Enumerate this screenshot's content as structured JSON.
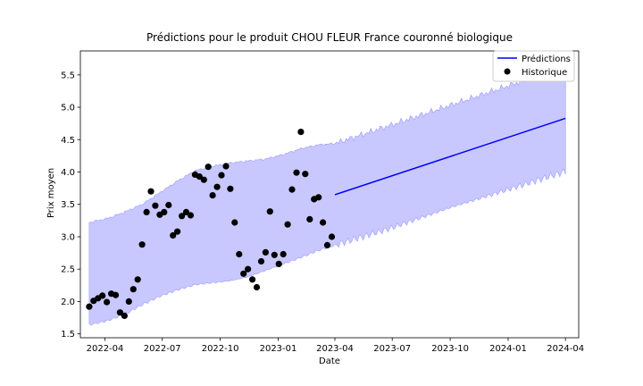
{
  "chart_data": {
    "type": "line",
    "title": "Prédictions pour le produit CHOU FLEUR France couronné biologique",
    "xlabel": "Date",
    "ylabel": "Prix moyen",
    "ylim": [
      1.44,
      5.87
    ],
    "xlim": [
      "2022-02-21",
      "2024-04-22"
    ],
    "grid": false,
    "legend_position": "top-right",
    "x_tick_labels": [
      "2022-04",
      "2022-07",
      "2022-10",
      "2023-01",
      "2023-04",
      "2023-07",
      "2023-10",
      "2024-01",
      "2024-04"
    ],
    "y_tick_labels": [
      "1.5",
      "2.0",
      "2.5",
      "3.0",
      "3.5",
      "4.0",
      "4.5",
      "5.0",
      "5.5"
    ],
    "colors": {
      "prediction_line": "#0000ff",
      "interval_fill": "#c8c8ff",
      "interval_edge": "#9a9aff",
      "historical_points": "#000000"
    },
    "series": [
      {
        "name": "Prédictions",
        "kind": "line",
        "x": [
          "2023-04-01",
          "2024-04-01"
        ],
        "y": [
          3.65,
          4.83
        ]
      },
      {
        "name": "Historique",
        "kind": "scatter",
        "x": [
          "2022-03-07",
          "2022-03-14",
          "2022-03-21",
          "2022-03-28",
          "2022-04-04",
          "2022-04-11",
          "2022-04-18",
          "2022-04-25",
          "2022-05-02",
          "2022-05-09",
          "2022-05-16",
          "2022-05-23",
          "2022-05-30",
          "2022-06-06",
          "2022-06-13",
          "2022-06-20",
          "2022-06-27",
          "2022-07-04",
          "2022-07-11",
          "2022-07-18",
          "2022-07-25",
          "2022-08-01",
          "2022-08-08",
          "2022-08-15",
          "2022-08-22",
          "2022-08-29",
          "2022-09-05",
          "2022-09-12",
          "2022-09-19",
          "2022-09-26",
          "2022-10-03",
          "2022-10-10",
          "2022-10-17",
          "2022-10-24",
          "2022-10-31",
          "2022-11-07",
          "2022-11-14",
          "2022-11-21",
          "2022-11-28",
          "2022-12-05",
          "2022-12-12",
          "2022-12-19",
          "2022-12-26",
          "2023-01-02",
          "2023-01-09",
          "2023-01-16",
          "2023-01-23",
          "2023-01-30",
          "2023-02-06",
          "2023-02-13",
          "2023-02-20",
          "2023-02-27",
          "2023-03-06",
          "2023-03-13",
          "2023-03-20",
          "2023-03-27"
        ],
        "y": [
          1.92,
          2.01,
          2.05,
          2.09,
          1.99,
          2.12,
          2.1,
          1.83,
          1.78,
          2.0,
          2.19,
          2.34,
          2.88,
          3.38,
          3.7,
          3.48,
          3.34,
          3.38,
          3.49,
          3.02,
          3.08,
          3.32,
          3.38,
          3.33,
          3.96,
          3.93,
          3.88,
          4.08,
          3.64,
          3.77,
          3.95,
          4.09,
          3.74,
          3.22,
          2.73,
          2.43,
          2.5,
          2.34,
          2.22,
          2.62,
          2.76,
          3.39,
          2.72,
          2.58,
          2.73,
          3.19,
          3.73,
          3.99,
          4.62,
          3.97,
          3.27,
          3.58,
          3.61,
          3.22,
          2.87,
          3.0
        ]
      },
      {
        "name": "",
        "kind": "band",
        "x": [
          "2022-03-07",
          "2022-04-04",
          "2022-05-02",
          "2022-05-30",
          "2022-06-27",
          "2022-07-25",
          "2022-08-22",
          "2022-09-19",
          "2022-10-17",
          "2022-11-14",
          "2022-12-12",
          "2023-01-09",
          "2023-02-06",
          "2023-03-06",
          "2023-04-01",
          "2023-07-01",
          "2023-10-01",
          "2024-01-01",
          "2024-04-01"
        ],
        "lower": [
          1.64,
          1.7,
          1.8,
          1.95,
          2.08,
          2.18,
          2.26,
          2.29,
          2.32,
          2.38,
          2.48,
          2.58,
          2.68,
          2.79,
          2.87,
          3.14,
          3.45,
          3.73,
          4.01
        ],
        "upper": [
          3.22,
          3.28,
          3.38,
          3.5,
          3.68,
          3.86,
          4.02,
          4.09,
          4.14,
          4.17,
          4.2,
          4.27,
          4.36,
          4.42,
          4.44,
          4.73,
          5.03,
          5.33,
          5.64
        ]
      }
    ]
  }
}
